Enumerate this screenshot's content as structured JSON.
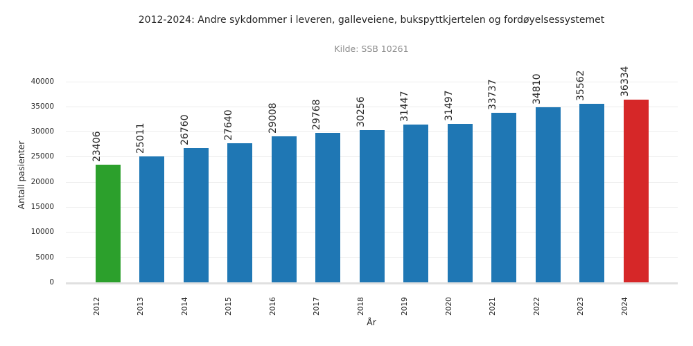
{
  "chart_data": {
    "type": "bar",
    "title": "2012-2024: Andre sykdommer i leveren, galleveiene, bukspyttkjertelen og fordøyelsessystemet",
    "subtitle": "Kilde: SSB 10261",
    "xlabel": "År",
    "ylabel": "Antall pasienter",
    "categories": [
      "2012",
      "2013",
      "2014",
      "2015",
      "2016",
      "2017",
      "2018",
      "2019",
      "2020",
      "2021",
      "2022",
      "2023",
      "2024"
    ],
    "values": [
      23406,
      25011,
      26760,
      27640,
      29008,
      29768,
      30256,
      31447,
      31497,
      33737,
      34810,
      35562,
      36334
    ],
    "bar_colors": [
      "#2ca02c",
      "#1f77b4",
      "#1f77b4",
      "#1f77b4",
      "#1f77b4",
      "#1f77b4",
      "#1f77b4",
      "#1f77b4",
      "#1f77b4",
      "#1f77b4",
      "#1f77b4",
      "#1f77b4",
      "#d62728"
    ],
    "ylim": [
      0,
      40000
    ],
    "yticks": [
      0,
      5000,
      10000,
      15000,
      20000,
      25000,
      30000,
      35000,
      40000
    ],
    "grid": "horizontal",
    "value_labels": "rotated 90° above bars",
    "tick_label_rotation": 90,
    "legend": "none",
    "colors": {
      "default_bar": "#1f77b4",
      "first_bar_highlight": "#2ca02c",
      "last_bar_highlight": "#d62728",
      "grid": "#ececec",
      "axis_line": "#e0e0e0",
      "text": "#262626",
      "subtitle_text": "#8c8c8c"
    }
  }
}
